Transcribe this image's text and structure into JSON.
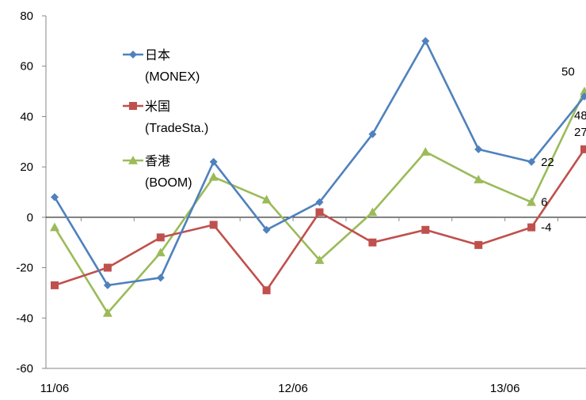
{
  "chart_data": {
    "type": "line",
    "title": "",
    "xlabel": "",
    "ylabel": "",
    "ylim": [
      -60,
      80
    ],
    "yticks": [
      80,
      60,
      40,
      20,
      0,
      -20,
      -40,
      -60
    ],
    "x_tick_labels": [
      "11/06",
      "12/06",
      "13/06"
    ],
    "x_tick_label_positions": [
      0,
      4.5,
      8.5
    ],
    "x": [
      0,
      1,
      2,
      3,
      4,
      5,
      6,
      7,
      8,
      9,
      10
    ],
    "grid": false,
    "legend_position": "top-left",
    "series": [
      {
        "name_line1": "日本",
        "name_line2": "(MONEX)",
        "color": "#4F81BD",
        "marker": "diamond",
        "values": [
          8,
          -27,
          -24,
          22,
          -5,
          6,
          33,
          70,
          27,
          22,
          48
        ],
        "end_label": "48"
      },
      {
        "name_line1": "米国",
        "name_line2": "(TradeSta.)",
        "color": "#C0504D",
        "marker": "square",
        "values": [
          -27,
          -20,
          -8,
          -3,
          -29,
          2,
          -10,
          -5,
          -11,
          -4,
          27
        ],
        "end_label": "27",
        "extra_label": "-4"
      },
      {
        "name_line1": "香港",
        "name_line2": "(BOOM)",
        "color": "#9BBB59",
        "marker": "triangle",
        "values": [
          -4,
          -38,
          -14,
          16,
          7,
          -17,
          2,
          26,
          15,
          6,
          50
        ],
        "end_label": "50"
      }
    ],
    "annotations": [
      {
        "text": "50",
        "series": 2,
        "index": 10
      },
      {
        "text": "48",
        "series": 0,
        "index": 10
      },
      {
        "text": "27",
        "series": 1,
        "index": 10
      },
      {
        "text": "22",
        "series": 0,
        "index": 9
      },
      {
        "text": "6",
        "series": 2,
        "index": 9
      },
      {
        "text": "-4",
        "series": 1,
        "index": 9
      }
    ]
  }
}
